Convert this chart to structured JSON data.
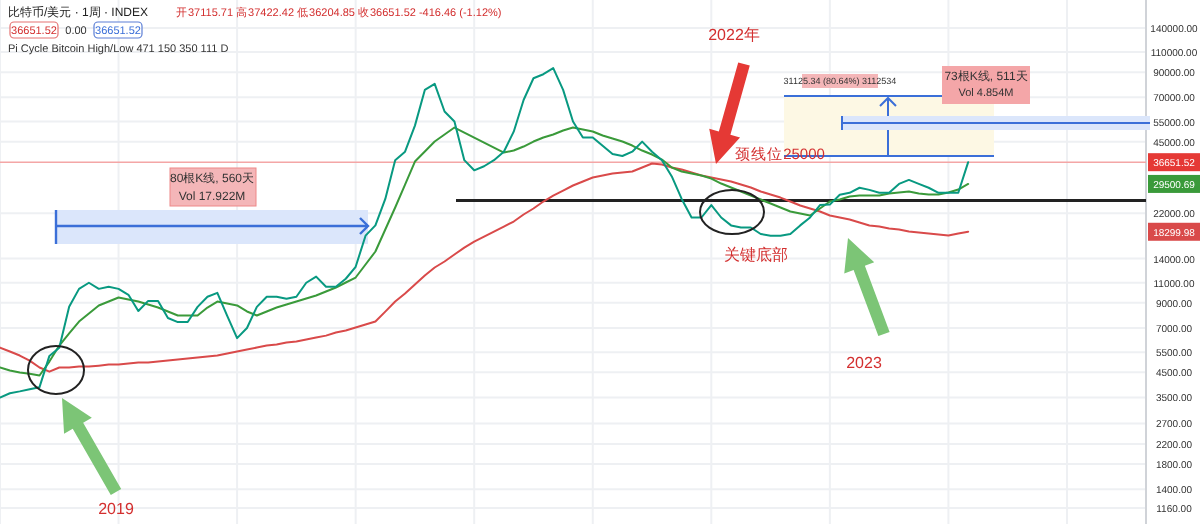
{
  "chart_data": {
    "type": "line",
    "title": "比特币/美元 · 1周 · INDEX",
    "subtitle": "开37115.71 高37422.42 低36204.85 收36651.52 -416.46 (-1.12%)",
    "categories": [
      null,
      null,
      null,
      null,
      null,
      null,
      null,
      null,
      null,
      null,
      null,
      null,
      null,
      null,
      null,
      null,
      null,
      null,
      null,
      null,
      null,
      null,
      null,
      null,
      null,
      null,
      null,
      null,
      null,
      null,
      null,
      null,
      null,
      null,
      null,
      null,
      null,
      null,
      null,
      null,
      null,
      null,
      null,
      null,
      null,
      null,
      null,
      null,
      null,
      null,
      null,
      null,
      null,
      null,
      null,
      null,
      null,
      null,
      null,
      null,
      null,
      null,
      null,
      null,
      null,
      null,
      null,
      null,
      null,
      null,
      null,
      null,
      null,
      null,
      null,
      null,
      null,
      null,
      null,
      null,
      null,
      null,
      null,
      null,
      null,
      null,
      null,
      null,
      null,
      null,
      null,
      null,
      null,
      null,
      null,
      null,
      null,
      null,
      null,
      null,
      null,
      null,
      null,
      null,
      null,
      null,
      null,
      null,
      null,
      null,
      null,
      null,
      null,
      null,
      null,
      null
    ],
    "series": [
      {
        "color": "#d94a4a",
        "values": [
          5760,
          5540,
          5320,
          5060,
          4720,
          4530,
          4720,
          4720,
          4770,
          4770,
          4810,
          4860,
          4860,
          4910,
          4960,
          4960,
          5010,
          5060,
          5110,
          5160,
          5220,
          5270,
          5320,
          5430,
          5540,
          5650,
          5760,
          5880,
          5940,
          6060,
          6120,
          6240,
          6370,
          6490,
          6690,
          6830,
          7040,
          7250,
          7470,
          8250,
          9120,
          9880,
          10810,
          11820,
          12810,
          13600,
          14580,
          15630,
          16600,
          17450,
          18340,
          19280,
          20270,
          21740,
          23080,
          24750,
          26270,
          27620,
          29040,
          30220,
          31450,
          32080,
          32730,
          33060,
          33390,
          34750,
          36170,
          35810,
          34750,
          34060,
          33060,
          32080,
          31450,
          30820,
          30220,
          29330,
          28460,
          27350,
          26540,
          25750,
          24750,
          23780,
          23080,
          22400,
          21520,
          21090,
          20670,
          20070,
          19480,
          19280,
          18900,
          18710,
          18340,
          18160,
          17980,
          17800,
          17620,
          17980,
          18300,
          null,
          null,
          null,
          null,
          null,
          null,
          null,
          null,
          null,
          null,
          null,
          null,
          null,
          null,
          null,
          null,
          null
        ]
      },
      {
        "color": "#3a9a3a",
        "values": [
          4720,
          4580,
          4490,
          4440,
          4360,
          5010,
          5880,
          6630,
          7470,
          8100,
          8770,
          9120,
          9500,
          9310,
          9120,
          8860,
          8590,
          8260,
          7930,
          7930,
          7930,
          8590,
          9120,
          8940,
          8770,
          8260,
          7930,
          8260,
          8590,
          8860,
          9120,
          9400,
          9690,
          10080,
          10490,
          11030,
          11590,
          13200,
          15030,
          18720,
          23310,
          29330,
          36900,
          40770,
          45050,
          48300,
          51800,
          49280,
          46870,
          44590,
          42420,
          40360,
          41180,
          42850,
          45050,
          46870,
          48300,
          50270,
          51800,
          50770,
          49780,
          47820,
          46400,
          45050,
          43280,
          41180,
          39560,
          37640,
          34750,
          33390,
          32730,
          32080,
          31140,
          29620,
          28460,
          27350,
          26270,
          25250,
          24260,
          23310,
          22400,
          21950,
          21520,
          23080,
          24750,
          25250,
          26010,
          26270,
          26270,
          26270,
          26800,
          27070,
          27350,
          26800,
          26540,
          26540,
          27070,
          27890,
          29500,
          null,
          null,
          null,
          null,
          null,
          null,
          null,
          null,
          null,
          null,
          null,
          null,
          null,
          null,
          null,
          null,
          null
        ]
      },
      {
        "color": "#089981",
        "values": [
          3500,
          3650,
          3720,
          3800,
          3880,
          5300,
          5750,
          8650,
          10350,
          11000,
          10350,
          10570,
          10350,
          9750,
          8300,
          9180,
          9180,
          7740,
          7430,
          7430,
          8650,
          9570,
          9950,
          7900,
          6330,
          7000,
          8650,
          9570,
          9570,
          9370,
          9570,
          11000,
          11700,
          10570,
          10570,
          11450,
          12900,
          17600,
          19500,
          25400,
          37400,
          40700,
          52800,
          75400,
          80100,
          60800,
          55000,
          37400,
          33800,
          35200,
          37400,
          40700,
          49700,
          68200,
          84700,
          88200,
          93700,
          75400,
          55000,
          46900,
          46900,
          43200,
          39750,
          39000,
          40700,
          45000,
          40700,
          37400,
          31800,
          25400,
          21100,
          21100,
          23900,
          21100,
          19500,
          19100,
          19100,
          17900,
          17600,
          17600,
          17900,
          19500,
          21100,
          23900,
          24000,
          26500,
          27000,
          28400,
          27800,
          27000,
          27000,
          29500,
          30700,
          29500,
          28400,
          27000,
          27000,
          27000,
          36651.52,
          null,
          null,
          null,
          null,
          null,
          null,
          null,
          null,
          null,
          null,
          null,
          null,
          null,
          null,
          null,
          null,
          null
        ]
      }
    ],
    "log": "y",
    "ylim": [
      990,
      185000
    ],
    "yticks": [
      {
        "value": 1160,
        "label": "1160.00"
      },
      {
        "value": 1400,
        "label": "1400.00"
      },
      {
        "value": 1800,
        "label": "1800.00"
      },
      {
        "value": 2200,
        "label": "2200.00"
      },
      {
        "value": 2700,
        "label": "2700.00"
      },
      {
        "value": 3500,
        "label": "3500.00"
      },
      {
        "value": 4500,
        "label": "4500.00"
      },
      {
        "value": 5500,
        "label": "5500.00"
      },
      {
        "value": 7000,
        "label": "7000.00"
      },
      {
        "value": 9000,
        "label": "9000.00"
      },
      {
        "value": 11000,
        "label": "11000.00"
      },
      {
        "value": 14000,
        "label": "14000.00"
      },
      {
        "value": 22000,
        "label": "22000.00"
      },
      {
        "value": 45000,
        "label": "45000.00"
      },
      {
        "value": 55000,
        "label": "55000.00"
      },
      {
        "value": 70000,
        "label": "70000.00"
      },
      {
        "value": 90000,
        "label": "90000.00"
      },
      {
        "value": 110000,
        "label": "110000.00"
      },
      {
        "value": 140000,
        "label": "140000.00"
      }
    ],
    "grid": true,
    "ref_lines": [
      {
        "axis": "y",
        "value": 36651.52,
        "label": "36651.52",
        "color": "#f4a6a6"
      },
      {
        "axis": "y",
        "value": 25000,
        "label": "颈线位25000",
        "color": "#222222"
      }
    ],
    "annotations": [
      "2019",
      "2022年",
      "关键底部",
      "2023",
      "80根K线, 560天",
      "Vol 17.922M",
      "31125.34 (80.64%) 3112534",
      "73根K线, 511天",
      "Vol 4.854M",
      "Pi Cycle Bitcoin High/Low 471 150 350 111 D",
      "36651.52",
      "0.00",
      "36651.52",
      {
        "text": "29500.69",
        "y": 29500.69
      },
      {
        "text": "18299.98",
        "y": 18299.98
      }
    ]
  }
}
